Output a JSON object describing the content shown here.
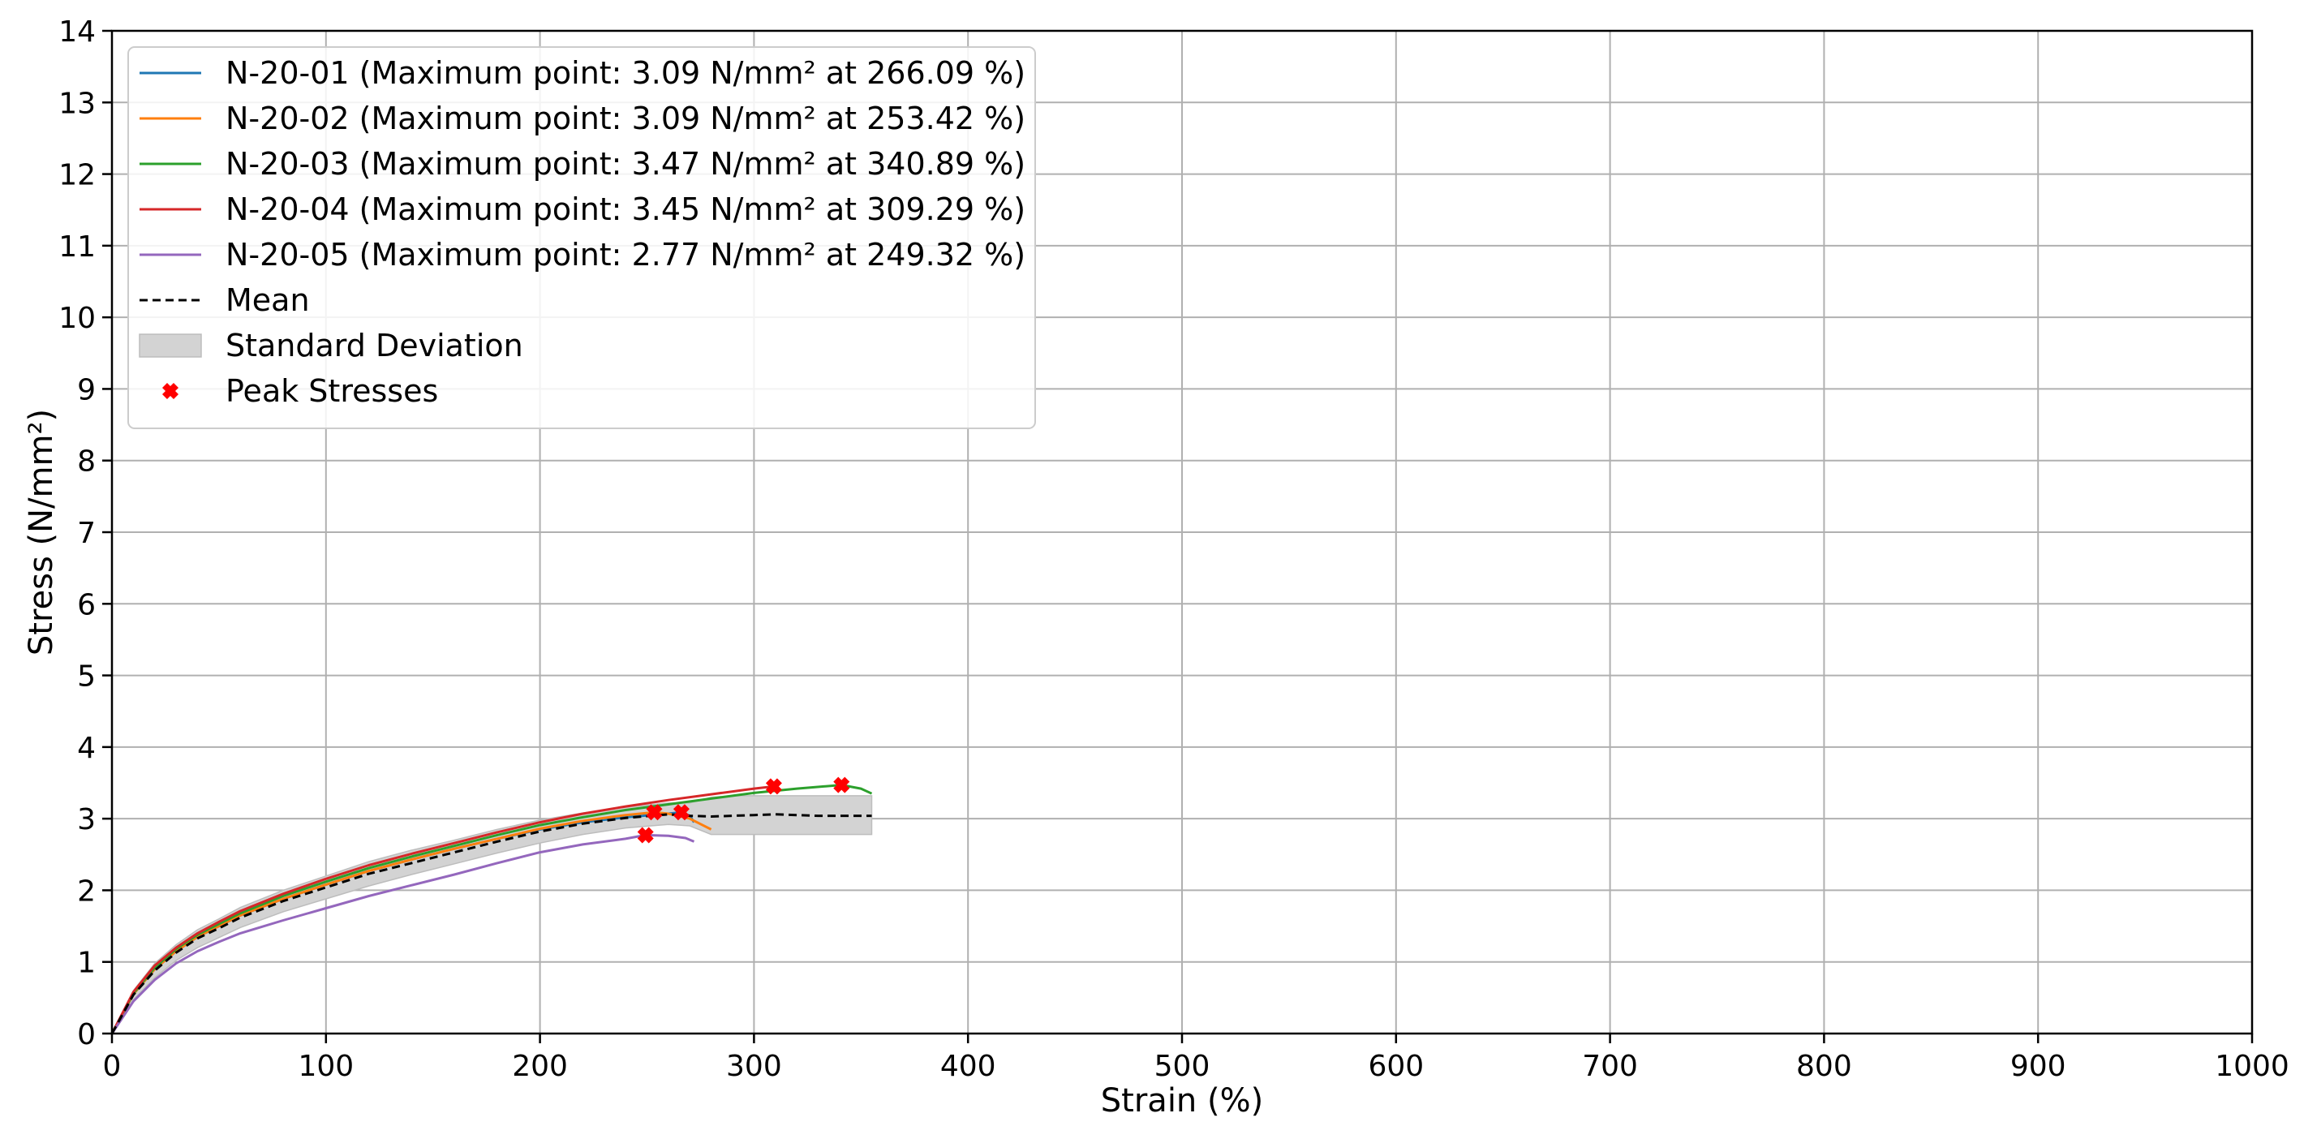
{
  "chart_data": {
    "type": "line",
    "title": "",
    "xlabel": "Strain (%)",
    "ylabel": "Stress (N/mm²)",
    "xlim": [
      0,
      1000
    ],
    "ylim": [
      0,
      14
    ],
    "xticks": [
      0,
      100,
      200,
      300,
      400,
      500,
      600,
      700,
      800,
      900,
      1000
    ],
    "yticks": [
      0,
      1,
      2,
      3,
      4,
      5,
      6,
      7,
      8,
      9,
      10,
      11,
      12,
      13,
      14
    ],
    "grid": true,
    "legend_position": "top-left",
    "series": [
      {
        "name": "N-20-01 (Maximum point: 3.09 N/mm² at 266.09 %)",
        "color": "#1f77b4",
        "style": "solid",
        "x": [
          0,
          10,
          20,
          30,
          40,
          50,
          60,
          80,
          100,
          120,
          140,
          160,
          180,
          200,
          220,
          240,
          260,
          266.09,
          270,
          272
        ],
        "y": [
          0,
          0.55,
          0.9,
          1.15,
          1.35,
          1.5,
          1.65,
          1.88,
          2.08,
          2.27,
          2.43,
          2.58,
          2.72,
          2.85,
          2.95,
          3.02,
          3.07,
          3.09,
          3.04,
          2.95
        ]
      },
      {
        "name": "N-20-02 (Maximum point: 3.09 N/mm² at 253.42 %)",
        "color": "#ff7f0e",
        "style": "solid",
        "x": [
          0,
          10,
          20,
          30,
          40,
          50,
          60,
          80,
          100,
          120,
          140,
          160,
          180,
          200,
          220,
          240,
          253.42,
          260,
          270,
          280
        ],
        "y": [
          0,
          0.55,
          0.9,
          1.15,
          1.35,
          1.5,
          1.65,
          1.88,
          2.08,
          2.27,
          2.43,
          2.58,
          2.72,
          2.86,
          2.97,
          3.05,
          3.09,
          3.07,
          3.0,
          2.85
        ]
      },
      {
        "name": "N-20-03 (Maximum point: 3.47 N/mm² at 340.89 %)",
        "color": "#2ca02c",
        "style": "solid",
        "x": [
          0,
          10,
          20,
          30,
          40,
          50,
          60,
          80,
          100,
          120,
          140,
          160,
          180,
          200,
          220,
          240,
          260,
          280,
          300,
          320,
          340.89,
          350,
          355
        ],
        "y": [
          0,
          0.56,
          0.92,
          1.18,
          1.38,
          1.53,
          1.68,
          1.92,
          2.12,
          2.31,
          2.47,
          2.62,
          2.77,
          2.91,
          3.02,
          3.12,
          3.2,
          3.28,
          3.36,
          3.42,
          3.47,
          3.42,
          3.35
        ]
      },
      {
        "name": "N-20-04 (Maximum point: 3.45 N/mm² at 309.29 %)",
        "color": "#d62728",
        "style": "solid",
        "x": [
          0,
          10,
          20,
          30,
          40,
          50,
          60,
          80,
          100,
          120,
          140,
          160,
          180,
          200,
          220,
          240,
          260,
          280,
          300,
          309.29,
          312
        ],
        "y": [
          0,
          0.58,
          0.95,
          1.2,
          1.4,
          1.56,
          1.71,
          1.95,
          2.16,
          2.35,
          2.51,
          2.66,
          2.81,
          2.95,
          3.07,
          3.17,
          3.26,
          3.34,
          3.42,
          3.45,
          3.4
        ]
      },
      {
        "name": "N-20-05 (Maximum point: 2.77 N/mm² at 249.32 %)",
        "color": "#9467bd",
        "style": "solid",
        "x": [
          0,
          10,
          20,
          30,
          40,
          50,
          60,
          80,
          100,
          120,
          140,
          160,
          180,
          200,
          220,
          240,
          249.32,
          260,
          268,
          272
        ],
        "y": [
          0,
          0.45,
          0.75,
          0.98,
          1.15,
          1.28,
          1.4,
          1.58,
          1.75,
          1.92,
          2.07,
          2.22,
          2.38,
          2.53,
          2.64,
          2.72,
          2.77,
          2.76,
          2.73,
          2.68
        ]
      },
      {
        "name": "Mean",
        "color": "#000000",
        "style": "dashed",
        "x": [
          0,
          10,
          20,
          30,
          40,
          50,
          60,
          80,
          100,
          120,
          140,
          160,
          180,
          200,
          220,
          240,
          260,
          270,
          280,
          290,
          300,
          310,
          320,
          330,
          340,
          350,
          355
        ],
        "y": [
          0,
          0.54,
          0.88,
          1.13,
          1.33,
          1.47,
          1.62,
          1.85,
          2.04,
          2.23,
          2.38,
          2.53,
          2.68,
          2.82,
          2.93,
          3.01,
          3.06,
          3.04,
          3.03,
          3.04,
          3.05,
          3.06,
          3.05,
          3.04,
          3.04,
          3.04,
          3.04
        ]
      }
    ],
    "std_band": {
      "name": "Standard Deviation",
      "color": "#d3d3d3",
      "x": [
        0,
        10,
        20,
        30,
        40,
        50,
        60,
        80,
        100,
        120,
        140,
        160,
        180,
        200,
        220,
        240,
        260,
        270,
        280,
        290,
        300,
        310,
        320,
        330,
        340,
        350,
        355
      ],
      "lower": [
        0,
        0.47,
        0.78,
        1.02,
        1.2,
        1.34,
        1.48,
        1.7,
        1.88,
        2.06,
        2.22,
        2.37,
        2.52,
        2.66,
        2.78,
        2.87,
        2.92,
        2.9,
        2.78,
        2.78,
        2.78,
        2.78,
        2.78,
        2.78,
        2.78,
        2.78,
        2.78
      ],
      "upper": [
        0,
        0.6,
        0.98,
        1.24,
        1.45,
        1.6,
        1.76,
        2.0,
        2.2,
        2.4,
        2.56,
        2.7,
        2.85,
        2.98,
        3.08,
        3.16,
        3.22,
        3.22,
        3.3,
        3.32,
        3.32,
        3.32,
        3.32,
        3.32,
        3.32,
        3.32,
        3.32
      ]
    },
    "peaks": {
      "name": "Peak Stresses",
      "color": "#ff0000",
      "marker": "X",
      "points": [
        {
          "x": 266.09,
          "y": 3.09
        },
        {
          "x": 253.42,
          "y": 3.09
        },
        {
          "x": 340.89,
          "y": 3.47
        },
        {
          "x": 309.29,
          "y": 3.45
        },
        {
          "x": 249.32,
          "y": 2.77
        }
      ]
    }
  }
}
